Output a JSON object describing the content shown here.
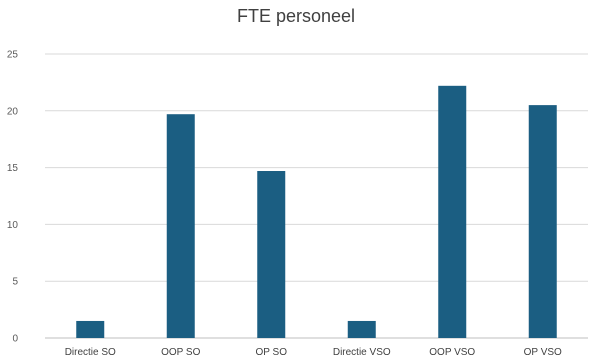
{
  "chart_data": {
    "type": "bar",
    "title": "FTE personeel",
    "xlabel": "",
    "ylabel": "",
    "categories": [
      "Directie SO",
      "OOP SO",
      "OP SO",
      "Directie VSO",
      "OOP VSO",
      "OP VSO"
    ],
    "values": [
      1.5,
      19.7,
      14.7,
      1.5,
      22.2,
      20.5
    ],
    "ylim": [
      0,
      25
    ],
    "yticks": [
      0,
      5,
      10,
      15,
      20,
      25
    ],
    "grid": true,
    "legend": "none",
    "colors": {
      "bar": "#1b5e82",
      "grid": "#d9d9d9",
      "axis": "#bfbfbf"
    }
  }
}
